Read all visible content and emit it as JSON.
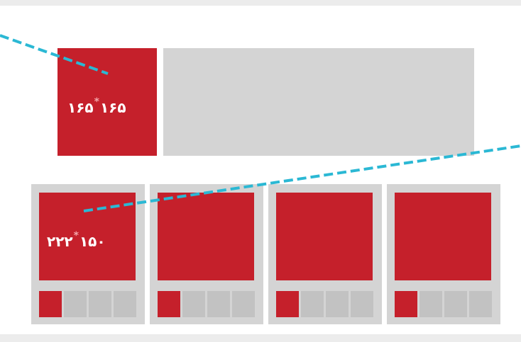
{
  "top": {
    "size_label": {
      "width": "۱۶۵",
      "sep": "*",
      "height": "۱۶۵"
    }
  },
  "cards": [
    {
      "size_label": {
        "width": "۱۵۰",
        "sep": "*",
        "height": "۲۲۲"
      },
      "active_thumb": 0
    },
    {
      "active_thumb": 0
    },
    {
      "active_thumb": 0
    },
    {
      "active_thumb": 0
    }
  ],
  "colors": {
    "accent": "#c5202b",
    "panel": "#d4d4d4",
    "thumb": "#c2c2c2",
    "line": "#2bb8d4",
    "background": "#ffffff"
  }
}
